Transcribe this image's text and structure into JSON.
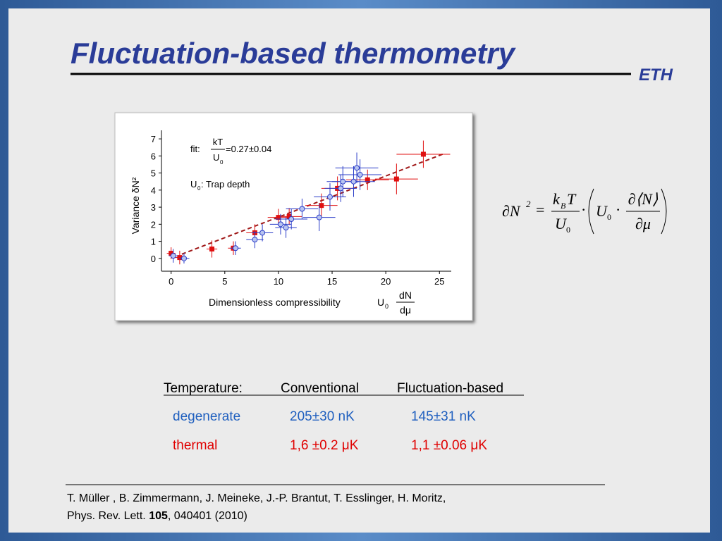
{
  "header": {
    "title": "Fluctuation-based thermometry",
    "logo": "ETH"
  },
  "chart_data": {
    "type": "scatter",
    "y_label": "Variance δN²",
    "x_label": "Dimensionless compressibility",
    "x_label_symbol": "U",
    "x_label_symbol_sub": "0",
    "x_label_numerator": "dN",
    "x_label_denominator": "dμ",
    "fit_label": "fit:",
    "fit_numerator": "kT",
    "fit_denominator": "U",
    "fit_denominator_sub": "0",
    "fit_value": "=0.27±0.04",
    "trap_symbol": "U",
    "trap_sub": "0",
    "trap_text": ": Trap depth",
    "xlim": [
      -0.9,
      26.1
    ],
    "ylim": [
      -0.75,
      7.5
    ],
    "xticks": [
      0,
      5,
      10,
      15,
      20,
      25
    ],
    "yticks": [
      0,
      1,
      2,
      3,
      4,
      5,
      6,
      7
    ],
    "fit_line": {
      "color": "#a01818",
      "x": [
        1,
        25.5
      ],
      "values": [
        0.25,
        6.15
      ]
    },
    "series": [
      {
        "marker": "square",
        "color": "#e01010",
        "x": [
          0,
          0.8,
          3.8,
          5.8,
          7.8,
          10,
          11,
          14,
          15.5,
          18.3,
          21,
          23.5
        ],
        "values": [
          0.3,
          0.05,
          0.55,
          0.6,
          1.5,
          2.4,
          2.45,
          3.1,
          4.1,
          4.6,
          4.65,
          6.1
        ],
        "xerr": [
          0.4,
          0.5,
          0.5,
          0.5,
          0.8,
          1,
          1.2,
          1.5,
          1.5,
          2,
          2,
          2.5
        ],
        "yerr": [
          0.35,
          0.4,
          0.5,
          0.4,
          0.5,
          0.5,
          0.5,
          0.7,
          0.7,
          0.6,
          0.9,
          0.8
        ]
      },
      {
        "marker": "circle",
        "color": "#2a3cc8",
        "x": [
          0.2,
          1.2,
          6,
          7.8,
          8.5,
          10.2,
          10.7,
          11.2,
          12.2,
          13.8,
          14.8,
          15.8,
          16,
          17,
          17.3,
          17.6
        ],
        "values": [
          0.15,
          0,
          0.6,
          1.1,
          1.5,
          2,
          1.8,
          2.3,
          2.9,
          2.4,
          3.6,
          4.1,
          4.5,
          4.5,
          5.3,
          4.9
        ],
        "xerr": [
          0.4,
          0.5,
          0.5,
          0.8,
          1,
          1,
          1,
          1.5,
          1.5,
          1.5,
          1.5,
          1.5,
          1.5,
          2,
          2,
          2
        ],
        "yerr": [
          0.4,
          0.3,
          0.4,
          0.5,
          0.5,
          0.6,
          0.6,
          0.6,
          0.6,
          0.8,
          0.8,
          0.8,
          0.9,
          0.9,
          0.9,
          0.9
        ]
      }
    ]
  },
  "equation": {
    "lhs": "∂N",
    "lhs_sup": "2",
    "eq": "=",
    "num_k": "k",
    "num_sub": "B",
    "num_t": "T",
    "den_u": "U",
    "den_sub": "0",
    "dot1": "·",
    "u": "U",
    "u_sub": "0",
    "dot2": "·",
    "num2": "∂⟨N⟩",
    "den2": "∂μ"
  },
  "table": {
    "header": [
      "Temperature:",
      "Conventional",
      "Fluctuation-based"
    ],
    "rows": [
      [
        "degenerate",
        "205±30  nK",
        "145±31 nK"
      ],
      [
        "thermal",
        "1,6 ±0.2 μK",
        "1,1 ±0.06 μK"
      ]
    ]
  },
  "reference": {
    "line1": "T. Müller , B. Zimmermann, J. Meineke, J.-P. Brantut, T. Esslinger, H. Moritz,",
    "journal": "Phys. Rev. Lett. ",
    "volume": "105",
    "rest": ", 040401 (2010)"
  }
}
